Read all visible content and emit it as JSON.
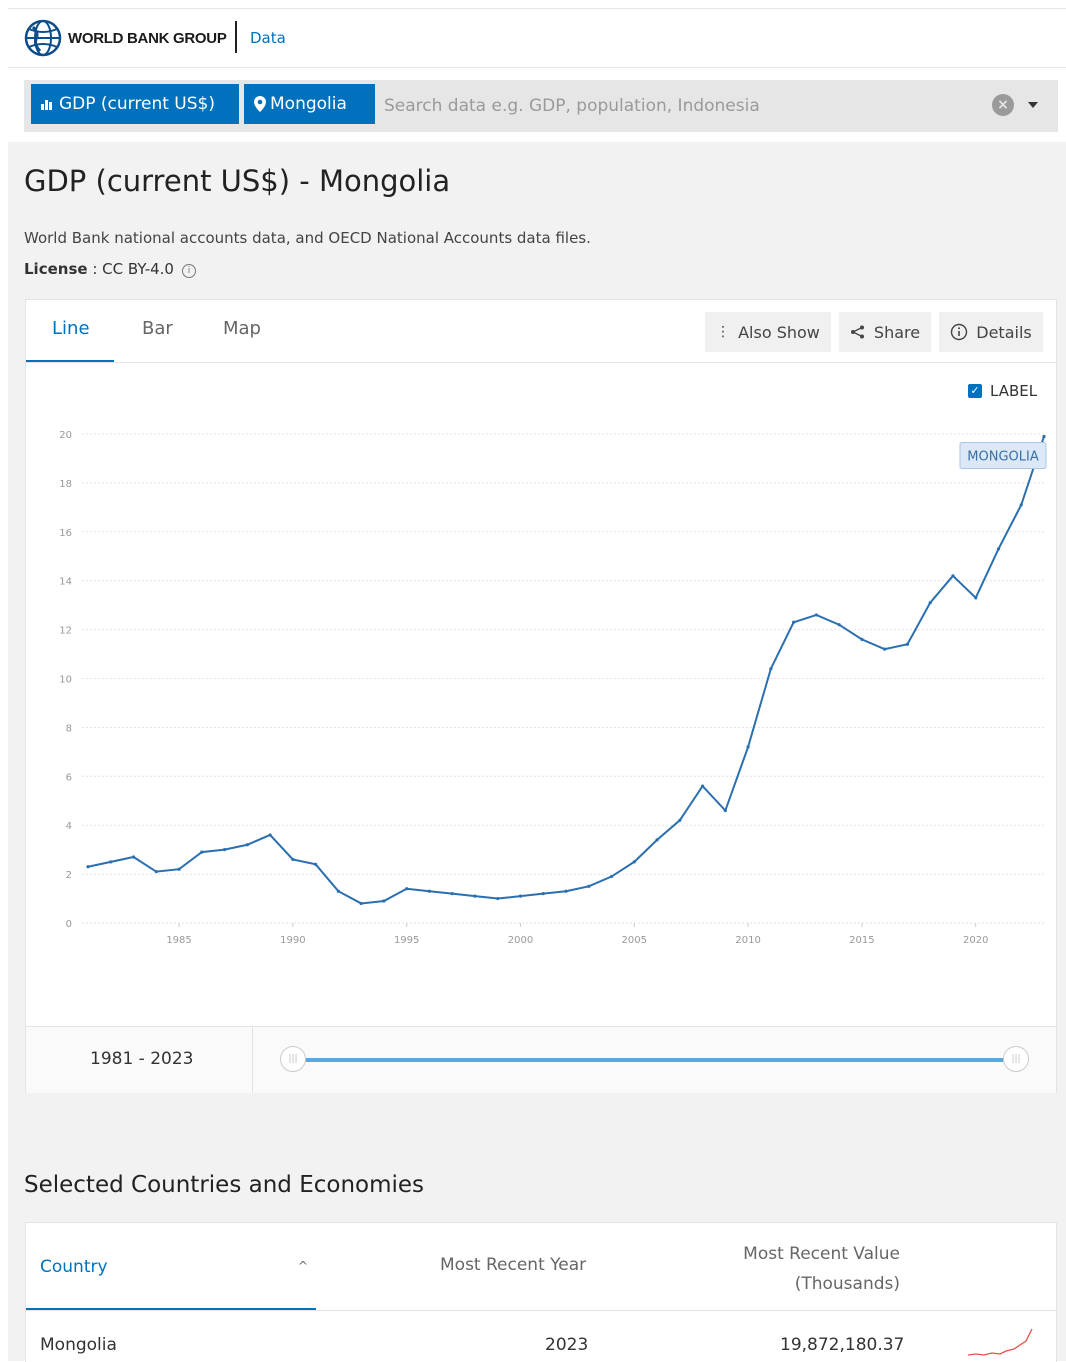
{
  "header": {
    "org_name": "WORLD BANK GROUP",
    "section_link": "Data"
  },
  "search": {
    "indicator_chip": "GDP (current US$)",
    "country_chip": "Mongolia",
    "placeholder": "Search data e.g. GDP, population, Indonesia"
  },
  "page": {
    "title": "GDP (current US$) - Mongolia",
    "source": "World Bank national accounts data, and OECD National Accounts data files.",
    "license_label": "License",
    "license_value": " : CC BY-4.0"
  },
  "tabs": [
    {
      "label": "Line",
      "active": true
    },
    {
      "label": "Bar",
      "active": false
    },
    {
      "label": "Map",
      "active": false
    }
  ],
  "actions": {
    "also_show": "Also Show",
    "share": "Share",
    "details": "Details"
  },
  "label_toggle": {
    "text": "LABEL",
    "checked": true
  },
  "range": {
    "text": "1981 - 2023"
  },
  "colors": {
    "accent": "#0071bc",
    "line": "#2a6fb0",
    "grid": "#e3e3e3"
  },
  "chart_data": {
    "type": "line",
    "x": [
      1981,
      1982,
      1983,
      1984,
      1985,
      1986,
      1987,
      1988,
      1989,
      1990,
      1991,
      1992,
      1993,
      1994,
      1995,
      1996,
      1997,
      1998,
      1999,
      2000,
      2001,
      2002,
      2003,
      2004,
      2005,
      2006,
      2007,
      2008,
      2009,
      2010,
      2011,
      2012,
      2013,
      2014,
      2015,
      2016,
      2017,
      2018,
      2019,
      2020,
      2021,
      2022,
      2023
    ],
    "series": [
      {
        "name": "MONGOLIA",
        "values": [
          2.3,
          2.5,
          2.7,
          2.1,
          2.2,
          2.9,
          3.0,
          3.2,
          3.6,
          2.6,
          2.4,
          1.3,
          0.8,
          0.9,
          1.4,
          1.3,
          1.2,
          1.1,
          1.0,
          1.1,
          1.2,
          1.3,
          1.5,
          1.9,
          2.5,
          3.4,
          4.2,
          5.6,
          4.6,
          7.2,
          10.4,
          12.3,
          12.6,
          12.2,
          11.6,
          11.2,
          11.4,
          13.1,
          14.2,
          13.3,
          15.3,
          17.1,
          19.9
        ]
      }
    ],
    "yticks": [
      0,
      2,
      4,
      6,
      8,
      10,
      12,
      14,
      16,
      18,
      20
    ],
    "xticks": [
      1985,
      1990,
      1995,
      2000,
      2005,
      2010,
      2015,
      2020
    ],
    "ylim": [
      0,
      20
    ],
    "xlim": [
      1981,
      2023
    ],
    "grid": true,
    "legend": "top-right"
  },
  "table": {
    "title": "Selected Countries and Economies",
    "col_country": "Country",
    "col_year": "Most Recent Year",
    "col_value_line1": "Most Recent Value",
    "col_value_line2": "(Thousands)",
    "rows": [
      {
        "country": "Mongolia",
        "year": "2023",
        "value": "19,872,180.37"
      }
    ]
  }
}
